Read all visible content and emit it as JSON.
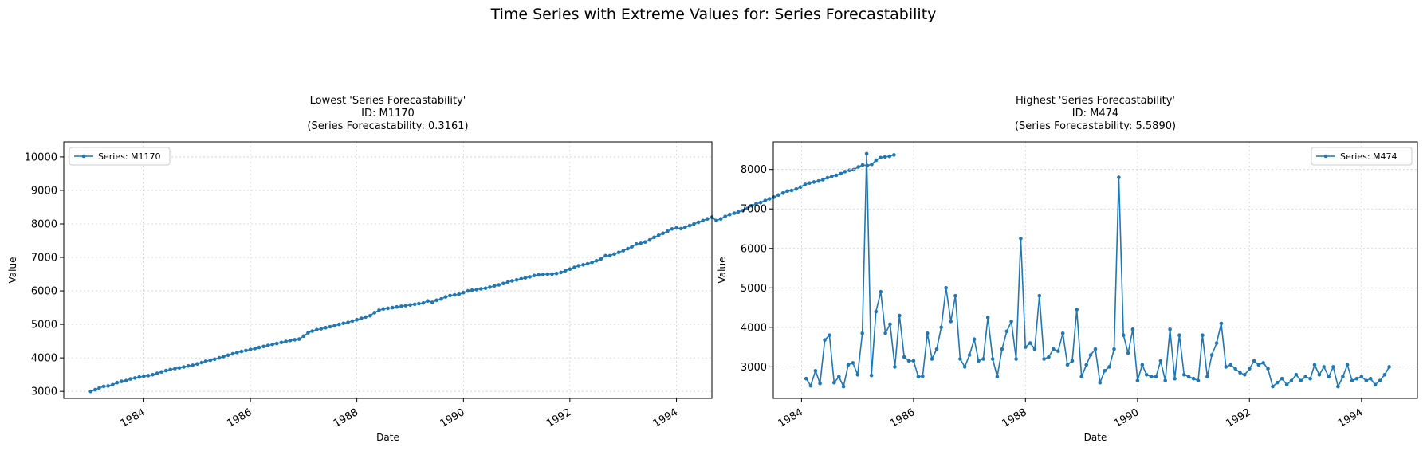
{
  "figure": {
    "suptitle": "Time Series with Extreme Values for: Series Forecastability"
  },
  "chart_data": [
    {
      "type": "line",
      "title": "Lowest 'Series Forecastability'\nID: M1170\n(Series Forecastability: 0.3161)",
      "xlabel": "Date",
      "ylabel": "Value",
      "x_range": [
        "1982-07-01",
        "1994-09-01"
      ],
      "ylim": [
        2790,
        10450
      ],
      "yticks": [
        3000,
        4000,
        5000,
        6000,
        7000,
        8000,
        9000,
        10000
      ],
      "xticks": [
        "1984",
        "1986",
        "1988",
        "1990",
        "1992",
        "1994"
      ],
      "grid": true,
      "legend_position": "upper-left",
      "color": "#1f77b4",
      "series": [
        {
          "name": "Series: M1170",
          "start": "1983-01",
          "frequency": "monthly",
          "values": [
            3000,
            3050,
            3100,
            3150,
            3160,
            3200,
            3260,
            3300,
            3320,
            3370,
            3400,
            3430,
            3450,
            3470,
            3500,
            3540,
            3580,
            3620,
            3650,
            3680,
            3700,
            3730,
            3760,
            3780,
            3820,
            3860,
            3900,
            3930,
            3960,
            4000,
            4040,
            4080,
            4120,
            4160,
            4190,
            4220,
            4250,
            4280,
            4310,
            4340,
            4370,
            4400,
            4430,
            4460,
            4490,
            4520,
            4540,
            4560,
            4650,
            4750,
            4800,
            4840,
            4870,
            4900,
            4930,
            4960,
            5000,
            5030,
            5060,
            5100,
            5140,
            5180,
            5220,
            5260,
            5350,
            5420,
            5460,
            5480,
            5500,
            5520,
            5540,
            5560,
            5580,
            5600,
            5620,
            5640,
            5700,
            5660,
            5720,
            5760,
            5820,
            5860,
            5880,
            5900,
            5950,
            6000,
            6020,
            6040,
            6060,
            6080,
            6110,
            6150,
            6180,
            6220,
            6260,
            6300,
            6330,
            6360,
            6390,
            6420,
            6460,
            6480,
            6490,
            6500,
            6500,
            6520,
            6550,
            6600,
            6650,
            6700,
            6750,
            6780,
            6810,
            6850,
            6900,
            6950,
            7050,
            7050,
            7100,
            7150,
            7200,
            7260,
            7320,
            7400,
            7420,
            7460,
            7520,
            7600,
            7660,
            7720,
            7780,
            7850,
            7880,
            7860,
            7900,
            7950,
            8000,
            8050,
            8100,
            8150,
            8200,
            8100,
            8150,
            8220,
            8280,
            8320,
            8360,
            8400,
            8460,
            8540,
            8600,
            8640,
            8700,
            8750,
            8800,
            8860,
            8920,
            8980,
            9000,
            9040,
            9100,
            9180,
            9220,
            9250,
            9280,
            9320,
            9380,
            9420,
            9450,
            9500,
            9560,
            9600,
            9620,
            9700,
            9760,
            9740,
            9780,
            9900,
            9980,
            10000,
            10020,
            10060
          ]
        }
      ]
    },
    {
      "type": "line",
      "title": "Highest 'Series Forecastability'\nID: M474\n(Series Forecastability: 5.5890)",
      "xlabel": "Date",
      "ylabel": "Value",
      "x_range": [
        "1983-07-01",
        "1995-01-01"
      ],
      "ylim": [
        2200,
        8700
      ],
      "yticks": [
        3000,
        4000,
        5000,
        6000,
        7000,
        8000
      ],
      "xticks": [
        "1984",
        "1986",
        "1988",
        "1990",
        "1992",
        "1994"
      ],
      "grid": true,
      "legend_position": "upper-right",
      "color": "#1f77b4",
      "series": [
        {
          "name": "Series: M474",
          "start": "1984-02",
          "frequency": "monthly",
          "values": [
            2700,
            2520,
            2900,
            2580,
            3680,
            3800,
            2600,
            2750,
            2500,
            3050,
            3100,
            2800,
            3850,
            8400,
            2780,
            4400,
            4900,
            3850,
            4080,
            3000,
            4300,
            3250,
            3150,
            3150,
            2750,
            2760,
            3850,
            3200,
            3450,
            4000,
            5000,
            4150,
            4800,
            3200,
            3000,
            3300,
            3700,
            3150,
            3200,
            4250,
            3200,
            2750,
            3450,
            3900,
            4150,
            3200,
            6250,
            3500,
            3600,
            3450,
            4800,
            3200,
            3250,
            3450,
            3400,
            3850,
            3050,
            3150,
            4450,
            2750,
            3050,
            3300,
            3450,
            2600,
            2900,
            3000,
            3450,
            7800,
            3800,
            3350,
            3950,
            2650,
            3050,
            2800,
            2750,
            2750,
            3150,
            2650,
            3950,
            2700,
            3800,
            2800,
            2750,
            2700,
            2650,
            3800,
            2750,
            3300,
            3600,
            4100,
            3000,
            3050,
            2950,
            2850,
            2800,
            2950,
            3150,
            3050,
            3100,
            2950,
            2500,
            2600,
            2700,
            2550,
            2650,
            2800,
            2650,
            2750,
            2700,
            3050,
            2800,
            3000,
            2750,
            3000,
            2500,
            2750,
            3050,
            2650,
            2700,
            2750,
            2650,
            2700,
            2550,
            2650,
            2800,
            3000
          ]
        }
      ]
    }
  ]
}
